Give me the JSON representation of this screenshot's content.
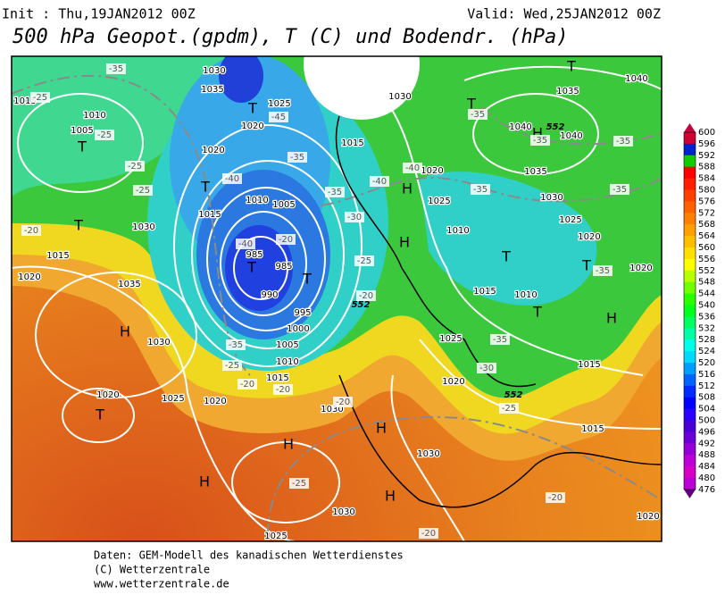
{
  "header": {
    "init": "Init : Thu,19JAN2012 00Z",
    "valid": "Valid: Wed,25JAN2012 00Z",
    "title": "500 hPa Geopot.(gpdm), T (C) und Bodendr. (hPa)"
  },
  "legend": {
    "labels": [
      "600",
      "596",
      "592",
      "588",
      "584",
      "580",
      "576",
      "572",
      "568",
      "564",
      "560",
      "556",
      "552",
      "548",
      "544",
      "540",
      "536",
      "532",
      "528",
      "524",
      "520",
      "516",
      "512",
      "508",
      "504",
      "500",
      "496",
      "492",
      "488",
      "484",
      "480",
      "476"
    ]
  },
  "map": {
    "pressure_centers": [
      "T",
      "T",
      "T",
      "T",
      "T",
      "T",
      "T",
      "T",
      "T",
      "T",
      "T",
      "T",
      "H",
      "H",
      "H",
      "H",
      "H",
      "H",
      "H",
      "H",
      "H"
    ],
    "isobar_labels": [
      "1015",
      "1010",
      "1005",
      "1030",
      "1015",
      "1020",
      "1035",
      "1030",
      "1025",
      "1020",
      "1020",
      "1030",
      "1025",
      "1020",
      "1015",
      "1010",
      "1015",
      "1010",
      "1025",
      "1020",
      "1030",
      "1030",
      "1030",
      "1025",
      "1015",
      "1015",
      "1020",
      "1025",
      "1030",
      "1035",
      "1040",
      "1040",
      "1040",
      "1035",
      "985",
      "985",
      "990",
      "995",
      "1000",
      "1005",
      "1010",
      "1015",
      "1020",
      "1020",
      "1025",
      "1030",
      "1035",
      "1005",
      "1010",
      "1015",
      "1020",
      "1020"
    ],
    "temperature_labels": [
      "-35",
      "-25",
      "-25",
      "-25",
      "-25",
      "-20",
      "-40",
      "-40",
      "-40",
      "-40",
      "-35",
      "-30",
      "-25",
      "-20",
      "-20",
      "-35",
      "-25",
      "-20",
      "-20",
      "-20",
      "-25",
      "-25",
      "-20",
      "-20",
      "-30",
      "-35",
      "-35",
      "-35",
      "-35",
      "-35",
      "-35",
      "-35",
      "-45",
      "-35"
    ],
    "height_labels": [
      "552",
      "552",
      "552"
    ]
  },
  "footer": {
    "source": "Daten: GEM-Modell des kanadischen Wetterdienstes",
    "copyright": "(C) Wetterzentrale",
    "url": "www.wetterzentrale.de"
  }
}
